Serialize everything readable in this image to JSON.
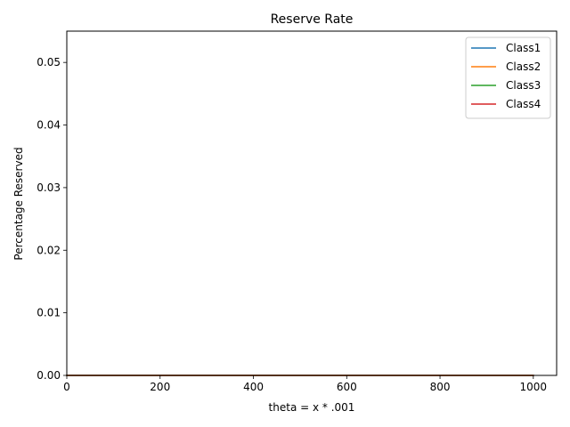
{
  "chart_data": {
    "type": "line",
    "title": "Reserve Rate",
    "xlabel": "theta = x * .001",
    "ylabel": "Percentage Reserved",
    "xlim": [
      0,
      1050
    ],
    "ylim": [
      0,
      0.055
    ],
    "x_ticks": [
      0,
      200,
      400,
      600,
      800,
      1000
    ],
    "x_tick_labels": [
      "0",
      "200",
      "400",
      "600",
      "800",
      "1000"
    ],
    "y_ticks": [
      0,
      0.01,
      0.02,
      0.03,
      0.04,
      0.05
    ],
    "y_tick_labels": [
      "0.00",
      "0.01",
      "0.02",
      "0.03",
      "0.04",
      "0.05"
    ],
    "grid": false,
    "legend": "top-right",
    "x": [
      0,
      1000
    ],
    "series": [
      {
        "name": "Class1",
        "color": "#1f77b4",
        "values": [
          0,
          0
        ]
      },
      {
        "name": "Class2",
        "color": "#ff7f0e",
        "values": [
          0,
          0
        ]
      },
      {
        "name": "Class3",
        "color": "#2ca02c",
        "values": [
          0,
          0
        ]
      },
      {
        "name": "Class4",
        "color": "#d62728",
        "values": [
          0,
          0
        ]
      }
    ]
  }
}
